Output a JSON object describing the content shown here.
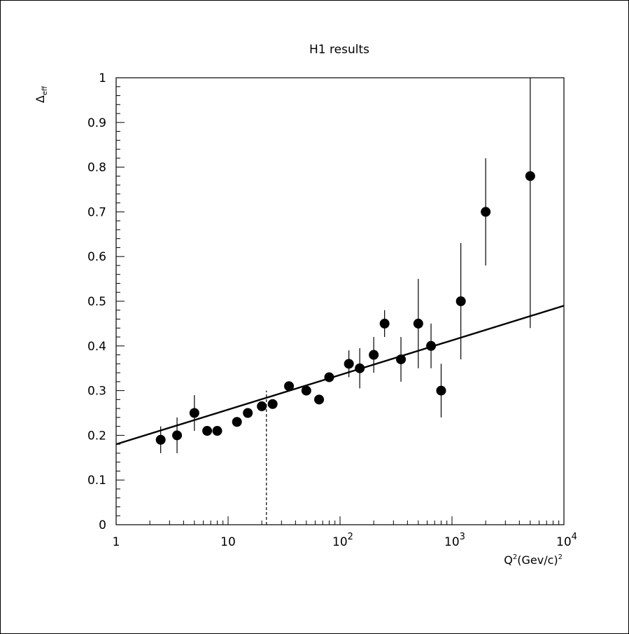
{
  "chart_data": {
    "type": "scatter",
    "title": "H1 results",
    "ylabel_main": "Δ",
    "ylabel_sub": "eff",
    "xlabel_text": "Q",
    "xlabel_sup1": "2",
    "xlabel_paren": "(Gev/c)",
    "xlabel_sup2": "2",
    "x_scale": "log",
    "xlim": [
      1,
      10000
    ],
    "ylim": [
      0,
      1
    ],
    "y_ticks": [
      0,
      0.1,
      0.2,
      0.3,
      0.4,
      0.5,
      0.6,
      0.7,
      0.8,
      0.9,
      1
    ],
    "y_tick_labels": [
      "0",
      "0.1",
      "0.2",
      "0.3",
      "0.4",
      "0.5",
      "0.6",
      "0.7",
      "0.8",
      "0.9",
      "1"
    ],
    "x_tick_labels": [
      {
        "base": "1",
        "exp": ""
      },
      {
        "base": "10",
        "exp": ""
      },
      {
        "base": "10",
        "exp": "2"
      },
      {
        "base": "10",
        "exp": "3"
      },
      {
        "base": "10",
        "exp": "4"
      }
    ],
    "points": [
      {
        "x": 2.5,
        "y": 0.19,
        "ylo": 0.16,
        "yhi": 0.22
      },
      {
        "x": 3.5,
        "y": 0.2,
        "ylo": 0.16,
        "yhi": 0.24
      },
      {
        "x": 5,
        "y": 0.25,
        "ylo": 0.21,
        "yhi": 0.29
      },
      {
        "x": 6.5,
        "y": 0.21,
        "ylo": 0.21,
        "yhi": 0.21
      },
      {
        "x": 8,
        "y": 0.21,
        "ylo": 0.21,
        "yhi": 0.21
      },
      {
        "x": 12,
        "y": 0.23,
        "ylo": 0.23,
        "yhi": 0.23
      },
      {
        "x": 15,
        "y": 0.25,
        "ylo": 0.25,
        "yhi": 0.25
      },
      {
        "x": 20,
        "y": 0.265,
        "ylo": 0.265,
        "yhi": 0.265
      },
      {
        "x": 25,
        "y": 0.27,
        "ylo": 0.27,
        "yhi": 0.27
      },
      {
        "x": 35,
        "y": 0.31,
        "ylo": 0.31,
        "yhi": 0.31
      },
      {
        "x": 50,
        "y": 0.3,
        "ylo": 0.3,
        "yhi": 0.3
      },
      {
        "x": 65,
        "y": 0.28,
        "ylo": 0.28,
        "yhi": 0.28
      },
      {
        "x": 80,
        "y": 0.33,
        "ylo": 0.33,
        "yhi": 0.33
      },
      {
        "x": 120,
        "y": 0.36,
        "ylo": 0.33,
        "yhi": 0.39
      },
      {
        "x": 150,
        "y": 0.35,
        "ylo": 0.305,
        "yhi": 0.395
      },
      {
        "x": 200,
        "y": 0.38,
        "ylo": 0.34,
        "yhi": 0.42
      },
      {
        "x": 250,
        "y": 0.45,
        "ylo": 0.42,
        "yhi": 0.48
      },
      {
        "x": 350,
        "y": 0.37,
        "ylo": 0.32,
        "yhi": 0.42
      },
      {
        "x": 500,
        "y": 0.45,
        "ylo": 0.35,
        "yhi": 0.55
      },
      {
        "x": 650,
        "y": 0.4,
        "ylo": 0.35,
        "yhi": 0.45
      },
      {
        "x": 800,
        "y": 0.3,
        "ylo": 0.24,
        "yhi": 0.36
      },
      {
        "x": 1200,
        "y": 0.5,
        "ylo": 0.37,
        "yhi": 0.63
      },
      {
        "x": 2000,
        "y": 0.7,
        "ylo": 0.58,
        "yhi": 0.82
      },
      {
        "x": 5000,
        "y": 0.78,
        "ylo": 0.44,
        "yhi": 1.0
      }
    ],
    "fit_line": {
      "x": [
        1,
        10000
      ],
      "y": [
        0.18,
        0.49
      ]
    },
    "reference_line": {
      "x": 22,
      "y_from": 0,
      "y_to": 0.3,
      "style": "dashed"
    }
  }
}
